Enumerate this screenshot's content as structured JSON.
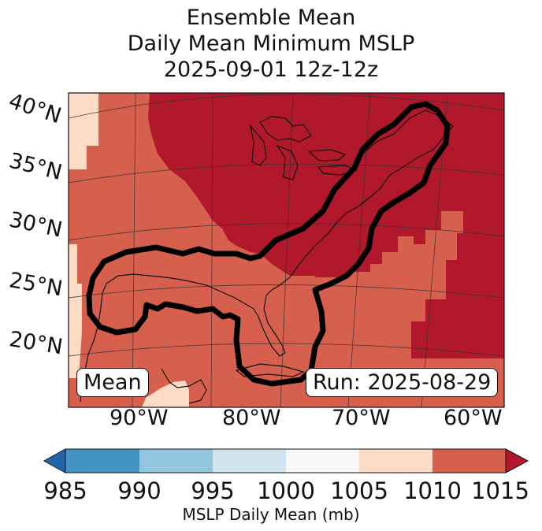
{
  "title": {
    "line1": "Ensemble Mean",
    "line2": "Daily Mean Minimum MSLP",
    "line3": "2025-09-01 12z-12z"
  },
  "map": {
    "lat_labels": [
      "40°N",
      "35°N",
      "30°N",
      "25°N",
      "20°N"
    ],
    "lon_labels": [
      "90°W",
      "80°W",
      "70°W",
      "60°W"
    ],
    "mean_label": "Mean",
    "run_label": "Run: 2025-08-29",
    "legend": {
      "band_1005_1010": "#fddbc7",
      "band_1010_1015": "#d6604d",
      "above_1015": "#b2182b",
      "contour": "#000000"
    }
  },
  "colorbar": {
    "ticks": [
      "985",
      "990",
      "995",
      "1000",
      "1005",
      "1010",
      "1015"
    ],
    "colors": [
      "#2166ac",
      "#4393c3",
      "#92c5de",
      "#d1e5f0",
      "#f7f7f7",
      "#fddbc7",
      "#d6604d",
      "#b2182b"
    ],
    "label": "MSLP Daily Mean (mb)"
  }
}
